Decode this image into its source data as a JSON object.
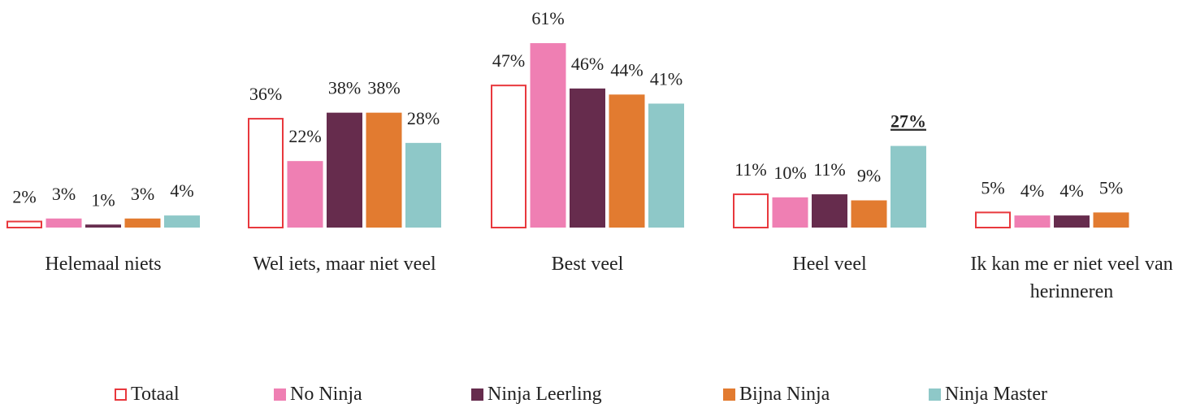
{
  "chart_data": {
    "type": "bar",
    "categories": [
      "Helemaal niets",
      "Wel iets, maar niet veel",
      "Best veel",
      "Heel veel",
      "Ik kan me er niet veel van herinneren"
    ],
    "series": [
      {
        "name": "Totaal",
        "color": "#e8383d",
        "outline": true,
        "values": [
          2,
          36,
          47,
          11,
          5
        ],
        "value_labels": [
          "2%",
          "36%",
          "47%",
          "11%",
          "5%"
        ]
      },
      {
        "name": "No Ninja",
        "color": "#ef7fb3",
        "values": [
          3,
          22,
          61,
          10,
          4
        ],
        "value_labels": [
          "3%",
          "22%",
          "61%",
          "10%",
          "4%"
        ]
      },
      {
        "name": "Ninja Leerling",
        "color": "#662c4d",
        "values": [
          1,
          38,
          46,
          11,
          4
        ],
        "value_labels": [
          "1%",
          "38%",
          "46%",
          "11%",
          "4%"
        ]
      },
      {
        "name": "Bijna Ninja",
        "color": "#e27b30",
        "values": [
          3,
          38,
          44,
          9,
          5
        ],
        "value_labels": [
          "3%",
          "38%",
          "44%",
          "9%",
          "5%"
        ]
      },
      {
        "name": "Ninja Master",
        "color": "#8ec8c8",
        "values": [
          4,
          28,
          41,
          27,
          null
        ],
        "value_labels": [
          "4%",
          "28%",
          "41%",
          "27%",
          null
        ]
      }
    ],
    "legend": "bottom"
  }
}
